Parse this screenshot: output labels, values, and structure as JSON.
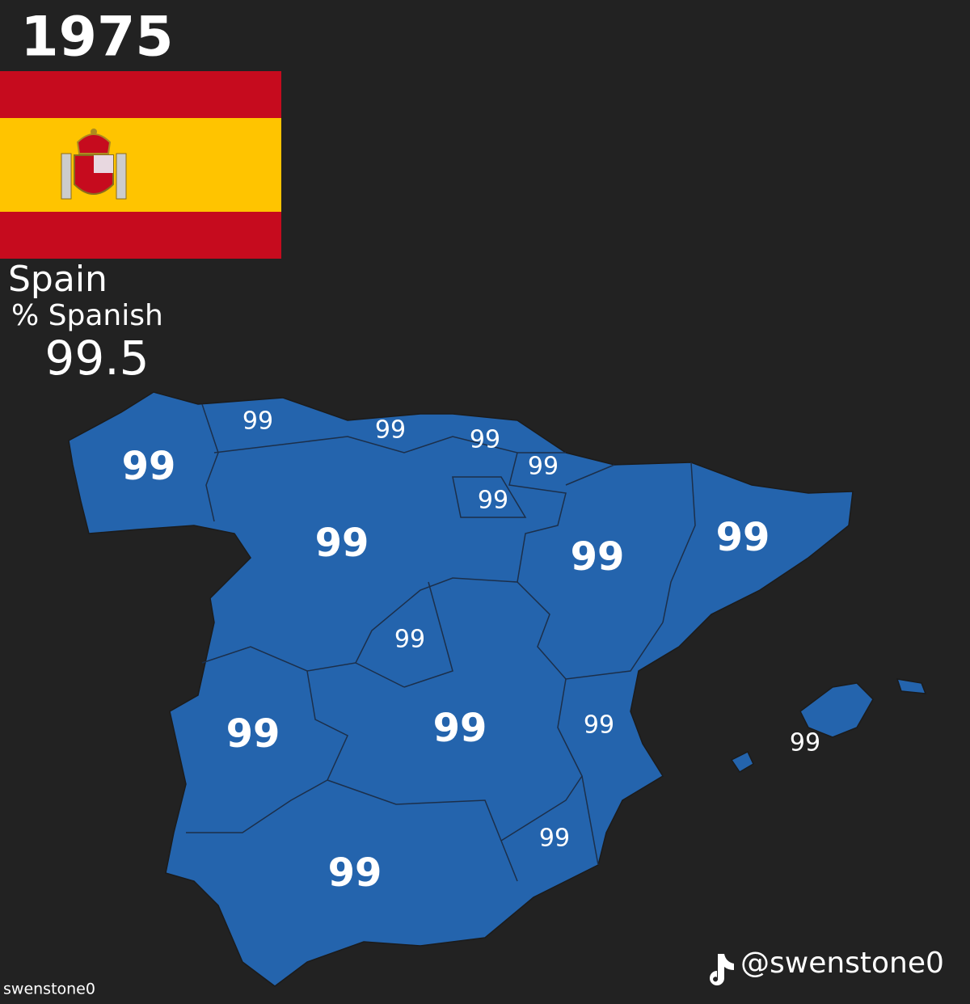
{
  "header": {
    "year": "1975",
    "country": "Spain",
    "metric": "% Spanish",
    "value": 99.5
  },
  "regions": [
    99,
    99,
    99,
    99,
    99,
    99,
    99,
    99,
    99,
    99,
    99,
    99,
    99,
    99,
    99,
    99
  ],
  "watermark": "swenstone0",
  "credit": "@swenstone0"
}
